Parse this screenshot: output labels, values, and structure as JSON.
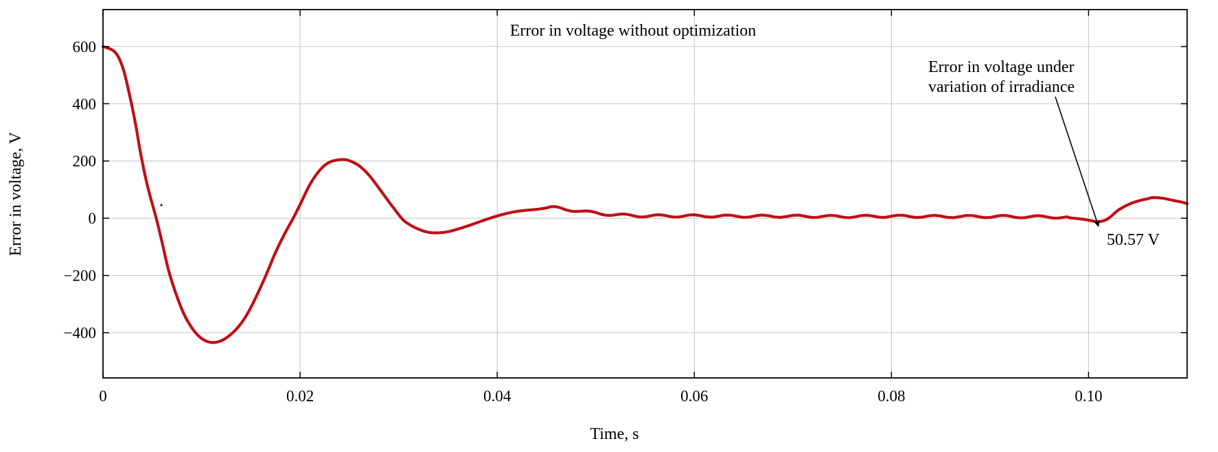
{
  "chart_data": {
    "type": "line",
    "title": "Error in voltage without optimization",
    "xlabel": "Time, s",
    "ylabel": "Error in voltage, V",
    "xlim": [
      0,
      0.11
    ],
    "ylim": [
      -558,
      729
    ],
    "grid": true,
    "legend": "none",
    "x_ticks": [
      {
        "v": 0,
        "label": "0",
        "grid": false
      },
      {
        "v": 0.02,
        "label": "0.02",
        "grid": true
      },
      {
        "v": 0.04,
        "label": "0.04",
        "grid": true
      },
      {
        "v": 0.06,
        "label": "0.06",
        "grid": true
      },
      {
        "v": 0.08,
        "label": "0.08",
        "grid": true
      },
      {
        "v": 0.1,
        "label": "0.10",
        "grid": true
      }
    ],
    "y_ticks": [
      {
        "v": 600,
        "label": "600",
        "grid": true
      },
      {
        "v": 400,
        "label": "400",
        "grid": true
      },
      {
        "v": 200,
        "label": "200",
        "grid": true
      },
      {
        "v": 0,
        "label": "0",
        "grid": true
      },
      {
        "v": -200,
        "label": "−200",
        "grid": true
      },
      {
        "v": -400,
        "label": "−400",
        "grid": true
      }
    ],
    "series": [
      {
        "name": "Error in voltage",
        "color": "#bf1015",
        "line_width": 4.2,
        "points": [
          [
            0,
            600
          ],
          [
            0.0012,
            581
          ],
          [
            0.002,
            527
          ],
          [
            0.0027,
            430
          ],
          [
            0.0033,
            330
          ],
          [
            0.0038,
            230
          ],
          [
            0.0045,
            115
          ],
          [
            0.0054,
            0
          ],
          [
            0.006,
            -85
          ],
          [
            0.0068,
            -200
          ],
          [
            0.008,
            -318
          ],
          [
            0.009,
            -382
          ],
          [
            0.01,
            -420
          ],
          [
            0.011,
            -434
          ],
          [
            0.012,
            -428
          ],
          [
            0.013,
            -405
          ],
          [
            0.014,
            -368
          ],
          [
            0.015,
            -312
          ],
          [
            0.0164,
            -210
          ],
          [
            0.0175,
            -120
          ],
          [
            0.0185,
            -50
          ],
          [
            0.0193,
            0
          ],
          [
            0.02,
            48
          ],
          [
            0.021,
            118
          ],
          [
            0.022,
            168
          ],
          [
            0.023,
            196
          ],
          [
            0.0242,
            205
          ],
          [
            0.025,
            201
          ],
          [
            0.026,
            183
          ],
          [
            0.027,
            150
          ],
          [
            0.028,
            105
          ],
          [
            0.029,
            58
          ],
          [
            0.0303,
            0
          ],
          [
            0.031,
            -20
          ],
          [
            0.032,
            -38
          ],
          [
            0.033,
            -49
          ],
          [
            0.034,
            -51
          ],
          [
            0.035,
            -47
          ],
          [
            0.036,
            -38
          ],
          [
            0.037,
            -27
          ],
          [
            0.038,
            -15
          ],
          [
            0.039,
            -3
          ],
          [
            0.04,
            8
          ],
          [
            0.041,
            17
          ],
          [
            0.042,
            24
          ],
          [
            0.043,
            28
          ],
          [
            0.044,
            31
          ],
          [
            0.0455,
            37
          ],
          [
            0.047,
            31
          ],
          [
            0.048,
            27
          ],
          [
            0.049,
            22
          ],
          [
            0.05,
            18
          ],
          [
            0.052,
            12
          ],
          [
            0.054,
            9
          ],
          [
            0.056,
            8
          ],
          [
            0.06,
            8
          ],
          [
            0.065,
            7
          ],
          [
            0.07,
            7
          ],
          [
            0.075,
            6
          ],
          [
            0.08,
            7
          ],
          [
            0.085,
            6
          ],
          [
            0.09,
            6
          ],
          [
            0.094,
            5
          ],
          [
            0.097,
            4
          ],
          [
            0.0985,
            0
          ],
          [
            0.0995,
            -4
          ],
          [
            0.1005,
            -10
          ],
          [
            0.101,
            -12
          ],
          [
            0.1016,
            -8
          ],
          [
            0.1022,
            4
          ],
          [
            0.103,
            28
          ],
          [
            0.104,
            47
          ],
          [
            0.105,
            60
          ],
          [
            0.106,
            68
          ],
          [
            0.1065,
            72
          ],
          [
            0.1075,
            70
          ],
          [
            0.1085,
            63
          ],
          [
            0.1095,
            56
          ],
          [
            0.11,
            51
          ]
        ],
        "ripple": {
          "t_start": 0.045,
          "t_end": 0.098,
          "amplitude": 4.2,
          "period": 0.0035
        }
      }
    ],
    "annotation": {
      "line1": "Error in voltage under",
      "line2": "variation of irradiance",
      "value_label": "50.57 V",
      "target_t": 0.101,
      "target_v": -12
    }
  },
  "layout_colors": {
    "grid": "#cbcbcb",
    "axis": "#000000",
    "background": "#ffffff"
  }
}
